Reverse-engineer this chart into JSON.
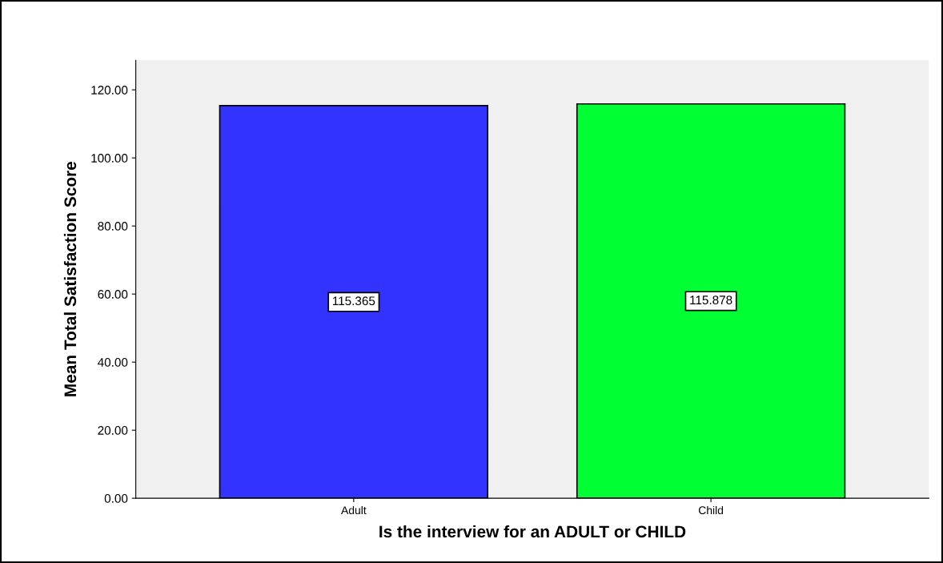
{
  "chart_data": {
    "type": "bar",
    "xlabel": "Is the interview for an ADULT or CHILD",
    "ylabel": "Mean Total Satisfaction Score",
    "categories": [
      "Adult",
      "Child"
    ],
    "values": [
      115.365,
      115.878
    ],
    "colors": [
      "#3333ff",
      "#00ff33"
    ],
    "data_labels": true,
    "ylim": [
      0,
      128.7
    ],
    "yticks": [
      {
        "value": 0,
        "label": "0.00"
      },
      {
        "value": 20,
        "label": "20.00"
      },
      {
        "value": 40,
        "label": "40.00"
      },
      {
        "value": 60,
        "label": "60.00"
      },
      {
        "value": 80,
        "label": "80.00"
      },
      {
        "value": 100,
        "label": "100.00"
      },
      {
        "value": 120,
        "label": "120.00"
      }
    ],
    "grid": false,
    "legend": false
  }
}
